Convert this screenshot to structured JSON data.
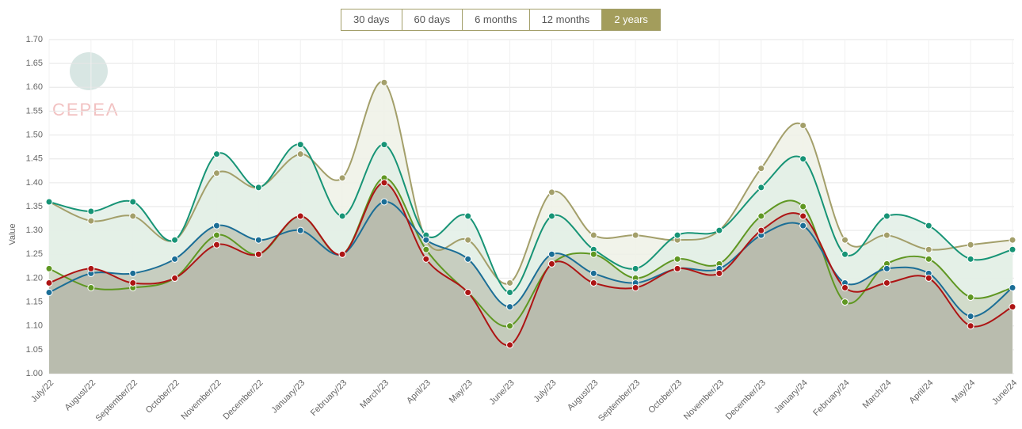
{
  "range_buttons": [
    "30 days",
    "60 days",
    "6 months",
    "12 months",
    "2 years"
  ],
  "active_button": 4,
  "logo": "CEPEA",
  "chart_data": {
    "type": "line",
    "y_label": "Value",
    "categories": [
      "July/22",
      "August/22",
      "September/22",
      "October/22",
      "November/22",
      "December/22",
      "January/23",
      "February/23",
      "March/23",
      "April/23",
      "May/23",
      "June/23",
      "July/23",
      "August/23",
      "September/23",
      "October/23",
      "November/23",
      "December/23",
      "January/24",
      "February/24",
      "March/24",
      "April/24",
      "May/24",
      "June/24"
    ],
    "series": [
      {
        "color": "#a39f6a",
        "area_color": "#eff1e6",
        "values": [
          1.36,
          1.32,
          1.33,
          1.28,
          1.42,
          1.39,
          1.46,
          1.41,
          1.61,
          1.28,
          1.28,
          1.19,
          1.38,
          1.29,
          1.29,
          1.28,
          1.3,
          1.43,
          1.52,
          1.28,
          1.29,
          1.26,
          1.27,
          1.28
        ]
      },
      {
        "color": "#179476",
        "area_color": "#e2eee6",
        "values": [
          1.36,
          1.34,
          1.36,
          1.28,
          1.46,
          1.39,
          1.48,
          1.33,
          1.48,
          1.29,
          1.33,
          1.17,
          1.33,
          1.26,
          1.22,
          1.29,
          1.3,
          1.39,
          1.45,
          1.25,
          1.33,
          1.31,
          1.24,
          1.26
        ]
      },
      {
        "color": "#5f9722",
        "area_color": "#cfd8c6",
        "values": [
          1.22,
          1.18,
          1.18,
          1.2,
          1.29,
          1.25,
          1.33,
          1.25,
          1.41,
          1.26,
          1.17,
          1.1,
          1.23,
          1.25,
          1.2,
          1.24,
          1.23,
          1.33,
          1.35,
          1.15,
          1.23,
          1.24,
          1.16,
          1.18
        ]
      },
      {
        "color": "#1b6e96",
        "area_color": "#c2c8b9",
        "values": [
          1.17,
          1.21,
          1.21,
          1.24,
          1.31,
          1.28,
          1.3,
          1.25,
          1.36,
          1.28,
          1.24,
          1.14,
          1.25,
          1.21,
          1.19,
          1.22,
          1.22,
          1.29,
          1.31,
          1.19,
          1.22,
          1.21,
          1.12,
          1.18
        ]
      },
      {
        "color": "#ad1414",
        "area_color": "#b7baac",
        "values": [
          1.19,
          1.22,
          1.19,
          1.2,
          1.27,
          1.25,
          1.33,
          1.25,
          1.4,
          1.24,
          1.17,
          1.06,
          1.23,
          1.19,
          1.18,
          1.22,
          1.21,
          1.3,
          1.33,
          1.18,
          1.19,
          1.2,
          1.1,
          1.14
        ]
      }
    ],
    "ylim": [
      1.0,
      1.7
    ],
    "yticks": [
      {
        "value": 1.0,
        "label": "1.00"
      },
      {
        "value": 1.05,
        "label": "1.05"
      },
      {
        "value": 1.1,
        "label": "1.10"
      },
      {
        "value": 1.15,
        "label": "1.15"
      },
      {
        "value": 1.2,
        "label": "1.20"
      },
      {
        "value": 1.25,
        "label": "1.25"
      },
      {
        "value": 1.3,
        "label": "1.30"
      },
      {
        "value": 1.35,
        "label": "1.35"
      },
      {
        "value": 1.4,
        "label": "1.40"
      },
      {
        "value": 1.45,
        "label": "1.45"
      },
      {
        "value": 1.5,
        "label": "1.50"
      },
      {
        "value": 1.55,
        "label": "1.55"
      },
      {
        "value": 1.6,
        "label": "1.60"
      },
      {
        "value": 1.65,
        "label": "1.65"
      },
      {
        "value": 1.7,
        "label": "1.70"
      }
    ],
    "grid": true
  }
}
